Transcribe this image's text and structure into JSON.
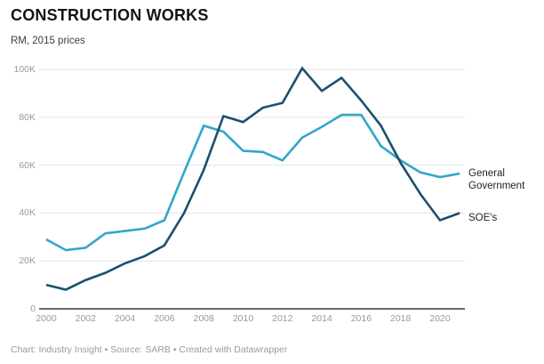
{
  "header": {
    "title": "CONSTRUCTION WORKS",
    "subtitle": "RM, 2015 prices"
  },
  "footer": {
    "credit": "Chart: Industry Insight • Source: SARB • Created with Datawrapper"
  },
  "colors": {
    "general_government_line": "#2fa7cb",
    "soes_line": "#1b506f",
    "gridline": "#e4e4e4",
    "axis_line": "#3b3b3b",
    "tick_text": "#9a9a9a",
    "label_text": "#1f1f1f"
  },
  "chart_data": {
    "type": "line",
    "title": "CONSTRUCTION WORKS",
    "subtitle": "RM, 2015 prices",
    "xlabel": "",
    "ylabel": "RM thousands, 2015 prices",
    "values_unit": "thousand RM",
    "x": [
      2000,
      2001,
      2002,
      2003,
      2004,
      2005,
      2006,
      2007,
      2008,
      2009,
      2010,
      2011,
      2012,
      2013,
      2014,
      2015,
      2016,
      2017,
      2018,
      2019,
      2020,
      2021
    ],
    "series": [
      {
        "name": "General Government",
        "color": "#2fa7cb",
        "values": [
          29,
          24.5,
          25.5,
          31.5,
          32.5,
          33.5,
          37,
          57,
          76.5,
          74,
          66,
          65.5,
          62,
          71.5,
          76,
          81,
          81,
          68,
          62,
          57,
          55,
          56.5
        ]
      },
      {
        "name": "SOE's",
        "color": "#1b506f",
        "values": [
          10,
          8,
          12,
          15,
          19,
          22,
          26.5,
          40,
          58,
          80.5,
          78,
          84,
          86,
          100.5,
          91,
          96.5,
          87,
          76.5,
          61,
          48,
          37,
          40
        ]
      }
    ],
    "y_ticks": [
      {
        "value": 100,
        "label": "100K"
      },
      {
        "value": 80,
        "label": "80K"
      },
      {
        "value": 60,
        "label": "60K"
      },
      {
        "value": 40,
        "label": "40K"
      },
      {
        "value": 20,
        "label": "20K"
      },
      {
        "value": 0,
        "label": "0"
      }
    ],
    "x_ticks": [
      2000,
      2002,
      2004,
      2006,
      2008,
      2010,
      2012,
      2014,
      2016,
      2018,
      2020
    ],
    "ylim": [
      0,
      100
    ],
    "xlim": [
      2000,
      2021
    ],
    "grid": "horizontal",
    "legend_position": "right of line ends"
  }
}
